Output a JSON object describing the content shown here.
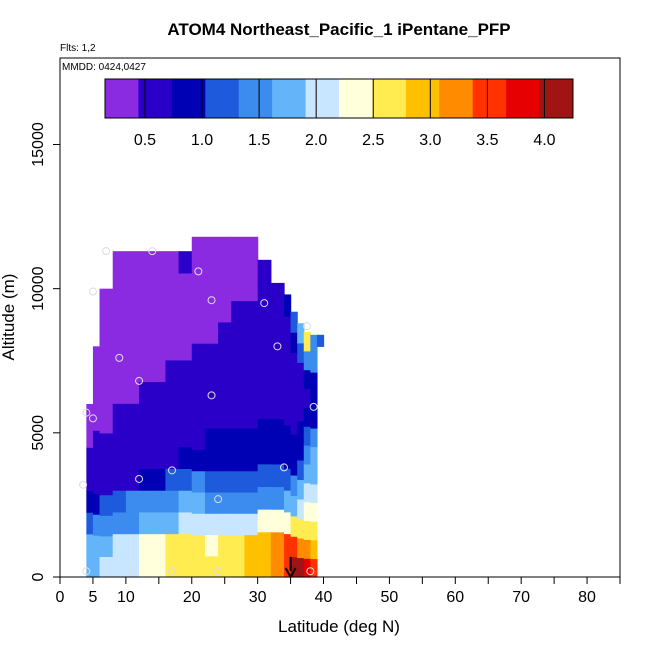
{
  "chart_data": {
    "type": "heatmap",
    "title": "ATOM4 Northeast_Pacific_1 iPentane_PFP",
    "flights_label": "Flts: 1,2",
    "date_label": "MMDD: 0424,0427",
    "xlabel": "Latitude (deg N)",
    "ylabel": "Altitude (m)",
    "xlim": [
      0,
      85
    ],
    "ylim": [
      0,
      18000
    ],
    "x_ticks": [
      0,
      5,
      10,
      20,
      30,
      40,
      50,
      60,
      70,
      80
    ],
    "x_minor_ticks": [
      15,
      25,
      35,
      45,
      55,
      65,
      75,
      85
    ],
    "y_ticks": [
      0,
      5000,
      10000,
      15000
    ],
    "colorbar": {
      "range": [
        0.15,
        4.25
      ],
      "ticks": [
        0.5,
        1.0,
        1.5,
        2.0,
        2.5,
        3.0,
        3.5,
        4.0
      ],
      "tick_labels": [
        "0.5",
        "1.0",
        "1.5",
        "2.0",
        "2.5",
        "3.0",
        "3.5",
        "4.0"
      ],
      "colors": [
        "#8a2be2",
        "#2a00c8",
        "#0000b4",
        "#1e5adc",
        "#3c8cf0",
        "#64b4fa",
        "#c8e6ff",
        "#ffffdc",
        "#ffec50",
        "#ffc000",
        "#ff8c00",
        "#ff3200",
        "#e60000",
        "#a01414"
      ]
    },
    "field_columns": [
      {
        "lat": 4,
        "bottom": 0,
        "top": 6000,
        "values": [
          1.8,
          1.7,
          1.3,
          1.0,
          0.55,
          0.5,
          0.4,
          0.3
        ]
      },
      {
        "lat": 5,
        "bottom": 0,
        "top": 8000,
        "values": [
          1.9,
          1.8,
          1.4,
          1.0,
          0.55,
          0.5,
          0.45,
          0.35,
          0.25,
          0.2,
          0.15
        ]
      },
      {
        "lat": 6,
        "bottom": 0,
        "top": 10000,
        "values": [
          2.0,
          1.9,
          1.5,
          1.1,
          0.6,
          0.55,
          0.5,
          0.4,
          0.3,
          0.2,
          0.2,
          0.2,
          0.2,
          0.2
        ]
      },
      {
        "lat": 8,
        "bottom": 0,
        "top": 11300,
        "values": [
          2.1,
          2.0,
          1.55,
          1.2,
          0.65,
          0.55,
          0.5,
          0.45,
          0.35,
          0.25,
          0.2,
          0.2,
          0.2,
          0.25,
          0.3
        ]
      },
      {
        "lat": 10,
        "bottom": 0,
        "top": 11300,
        "values": [
          2.0,
          2.1,
          1.6,
          1.4,
          0.7,
          0.6,
          0.55,
          0.45,
          0.4,
          0.3,
          0.2,
          0.2,
          0.2,
          0.25,
          0.35
        ]
      },
      {
        "lat": 12,
        "bottom": 0,
        "top": 11300,
        "values": [
          2.2,
          2.2,
          1.7,
          1.5,
          0.8,
          0.6,
          0.55,
          0.5,
          0.45,
          0.35,
          0.25,
          0.2,
          0.2,
          0.25,
          0.35
        ]
      },
      {
        "lat": 14,
        "bottom": 0,
        "top": 11300,
        "values": [
          2.4,
          2.3,
          1.8,
          1.55,
          1.0,
          0.65,
          0.6,
          0.55,
          0.5,
          0.4,
          0.3,
          0.2,
          0.2,
          0.25,
          0.4
        ]
      },
      {
        "lat": 16,
        "bottom": 0,
        "top": 11300,
        "values": [
          2.6,
          2.5,
          1.9,
          1.6,
          1.2,
          0.7,
          0.6,
          0.55,
          0.5,
          0.45,
          0.35,
          0.25,
          0.2,
          0.25,
          0.4
        ]
      },
      {
        "lat": 18,
        "bottom": 0,
        "top": 11300,
        "values": [
          2.7,
          2.6,
          2.0,
          1.65,
          1.3,
          0.8,
          0.65,
          0.6,
          0.55,
          0.5,
          0.4,
          0.3,
          0.25,
          0.3,
          0.45
        ]
      },
      {
        "lat": 20,
        "bottom": 0,
        "top": 11800,
        "values": [
          2.6,
          2.5,
          2.05,
          1.65,
          1.35,
          0.9,
          0.7,
          0.6,
          0.55,
          0.5,
          0.45,
          0.35,
          0.3,
          0.3,
          0.4,
          0.3
        ]
      },
      {
        "lat": 22,
        "bottom": 0,
        "top": 11800,
        "values": [
          2.5,
          2.4,
          2.05,
          1.6,
          1.3,
          1.0,
          0.75,
          0.6,
          0.55,
          0.5,
          0.45,
          0.4,
          0.35,
          0.3,
          0.35,
          0.25
        ]
      },
      {
        "lat": 24,
        "bottom": 0,
        "top": 11800,
        "values": [
          2.6,
          2.5,
          2.1,
          1.6,
          1.25,
          1.0,
          0.8,
          0.65,
          0.6,
          0.55,
          0.5,
          0.45,
          0.4,
          0.3,
          0.3,
          0.25
        ]
      },
      {
        "lat": 26,
        "bottom": 0,
        "top": 11800,
        "values": [
          2.7,
          2.6,
          2.1,
          1.55,
          1.2,
          0.95,
          0.8,
          0.7,
          0.65,
          0.6,
          0.55,
          0.5,
          0.45,
          0.35,
          0.3,
          0.25
        ]
      },
      {
        "lat": 28,
        "bottom": 0,
        "top": 11800,
        "values": [
          2.9,
          2.8,
          2.15,
          1.5,
          1.15,
          0.9,
          0.8,
          0.7,
          0.65,
          0.6,
          0.55,
          0.5,
          0.45,
          0.4,
          0.3,
          0.25
        ]
      },
      {
        "lat": 30,
        "bottom": 0,
        "top": 11000,
        "values": [
          3.0,
          3.0,
          2.2,
          1.5,
          1.1,
          0.9,
          0.75,
          0.7,
          0.65,
          0.6,
          0.55,
          0.5,
          0.45,
          0.45
        ]
      },
      {
        "lat": 32,
        "bottom": 0,
        "top": 10200,
        "values": [
          3.1,
          3.2,
          2.3,
          1.55,
          1.1,
          0.85,
          0.75,
          0.7,
          0.65,
          0.6,
          0.55,
          0.5,
          0.6
        ]
      },
      {
        "lat": 34,
        "bottom": 0,
        "top": 9800,
        "values": [
          3.6,
          3.4,
          2.4,
          1.7,
          1.2,
          0.9,
          0.75,
          0.7,
          0.65,
          0.6,
          0.55,
          0.6,
          0.8
        ]
      },
      {
        "lat": 35,
        "bottom": 0,
        "top": 9200,
        "values": [
          4.1,
          3.5,
          2.5,
          1.9,
          1.4,
          1.0,
          0.8,
          0.7,
          0.65,
          0.6,
          0.6,
          0.8,
          1.2
        ]
      },
      {
        "lat": 36,
        "bottom": 0,
        "top": 8800,
        "values": [
          4.2,
          3.3,
          2.6,
          2.1,
          1.7,
          1.3,
          1.0,
          0.75,
          0.7,
          0.65,
          0.7,
          1.2,
          1.8
        ]
      },
      {
        "lat": 37,
        "bottom": 0,
        "top": 8500,
        "values": [
          3.9,
          3.1,
          2.7,
          2.3,
          2.0,
          1.8,
          1.5,
          1.1,
          0.8,
          0.7,
          0.75,
          1.5,
          2.6
        ]
      },
      {
        "lat": 38,
        "bottom": 0,
        "top": 8400,
        "values": [
          3.4,
          2.9,
          2.6,
          2.4,
          2.1,
          1.9,
          1.7,
          1.4,
          1.0,
          0.75,
          0.8,
          1.4,
          1.6
        ]
      },
      {
        "lat": 39,
        "bottom": 8000,
        "top": 8400,
        "values": [
          1.2
        ]
      }
    ],
    "sample_points": [
      [
        5,
        9900
      ],
      [
        7,
        11300
      ],
      [
        14,
        11300
      ],
      [
        21,
        10600
      ],
      [
        23,
        9600
      ],
      [
        31,
        9500
      ],
      [
        9,
        7600
      ],
      [
        12,
        6800
      ],
      [
        23,
        6300
      ],
      [
        33,
        8000
      ],
      [
        37.5,
        8700
      ],
      [
        4,
        5700
      ],
      [
        5,
        5500
      ],
      [
        38.5,
        5900
      ],
      [
        34,
        3800
      ],
      [
        17,
        3700
      ],
      [
        12,
        3400
      ],
      [
        24,
        2700
      ],
      [
        3.5,
        3200
      ],
      [
        4,
        200
      ],
      [
        11,
        200
      ],
      [
        17,
        200
      ],
      [
        24,
        200
      ],
      [
        38,
        200
      ]
    ],
    "arrow": {
      "lat": 35,
      "from_alt": 700,
      "to_alt": 0
    }
  }
}
